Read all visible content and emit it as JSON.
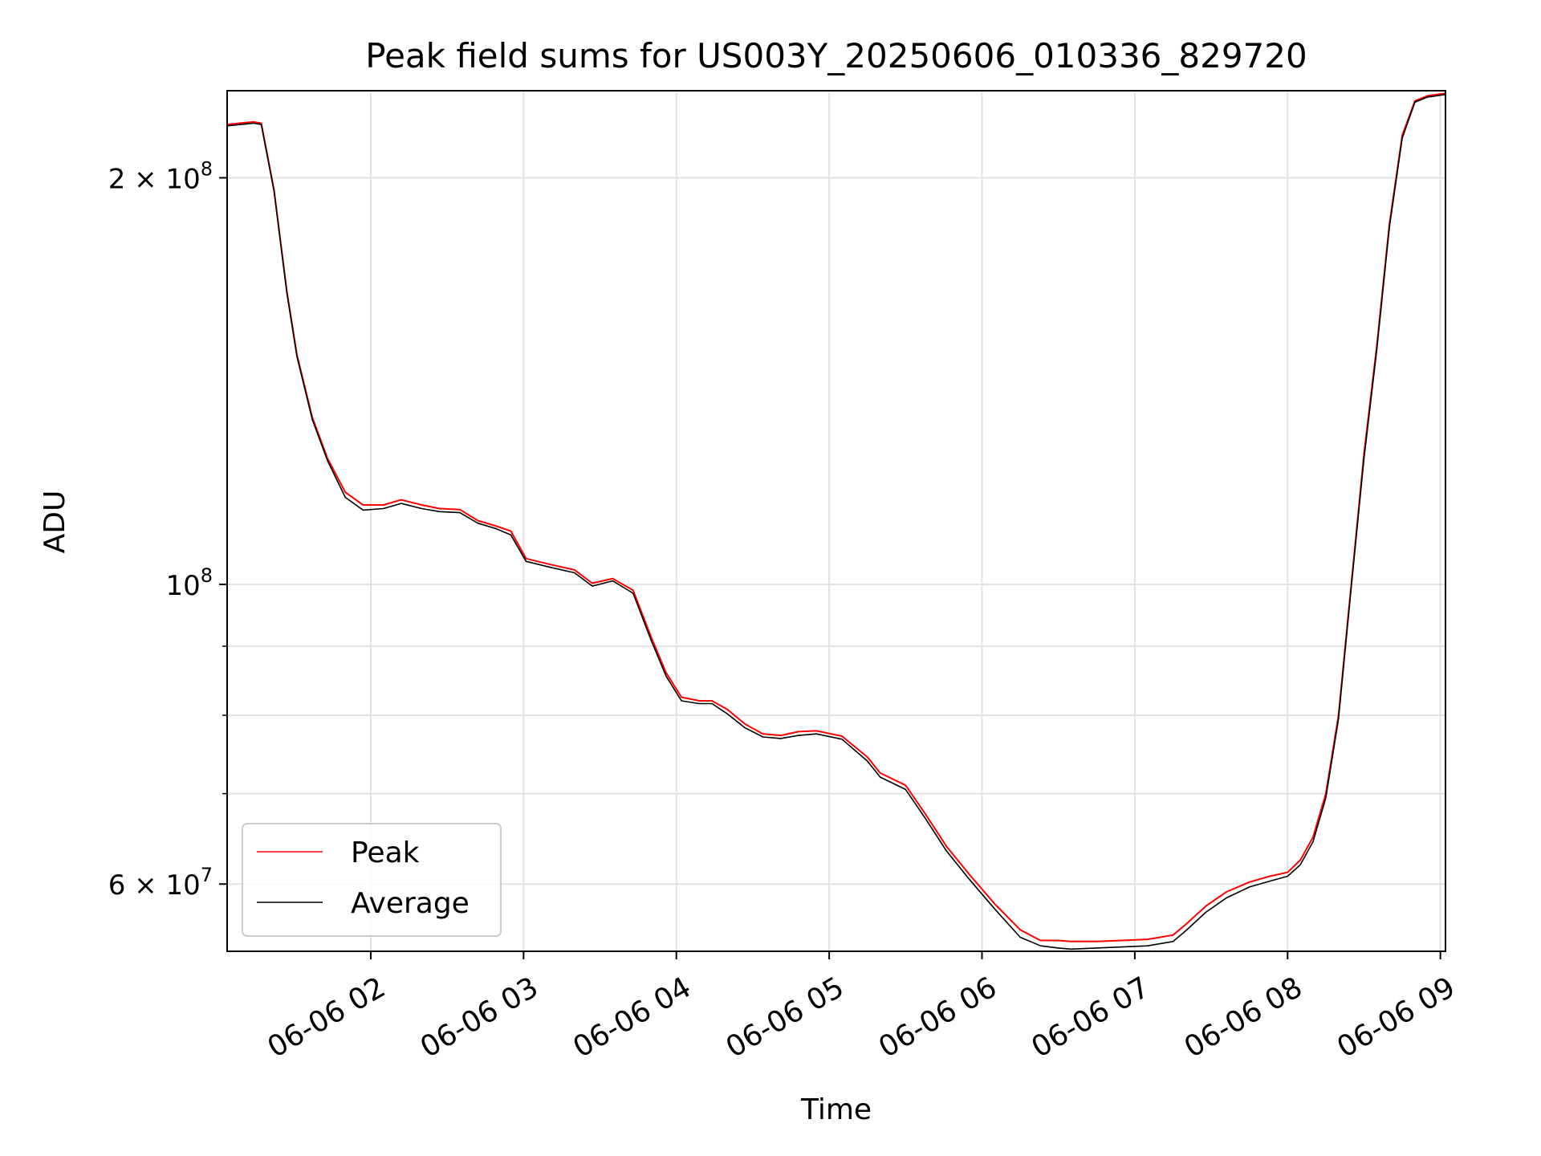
{
  "chart_data": {
    "type": "line",
    "title": "Peak field sums for US003Y_20250606_010336_829720",
    "xlabel": "Time",
    "ylabel": "ADU",
    "y_scale": "log",
    "grid": true,
    "legend_position": "lower-left",
    "xlim": [
      "2025-06-06T01:03:36",
      "2025-06-06T09:02:00"
    ],
    "ylim": [
      53500000,
      232000000
    ],
    "x_ticks": [
      {
        "t": "2025-06-06T02:00",
        "label": "06-06 02"
      },
      {
        "t": "2025-06-06T03:00",
        "label": "06-06 03"
      },
      {
        "t": "2025-06-06T04:00",
        "label": "06-06 04"
      },
      {
        "t": "2025-06-06T05:00",
        "label": "06-06 05"
      },
      {
        "t": "2025-06-06T06:00",
        "label": "06-06 06"
      },
      {
        "t": "2025-06-06T07:00",
        "label": "06-06 07"
      },
      {
        "t": "2025-06-06T08:00",
        "label": "06-06 08"
      },
      {
        "t": "2025-06-06T09:00",
        "label": "06-06 09"
      }
    ],
    "y_ticks": [
      {
        "value": 60000000,
        "mantissa": "6",
        "exp": "7"
      },
      {
        "value": 100000000,
        "mantissa": "",
        "exp": "8"
      },
      {
        "value": 200000000,
        "mantissa": "2",
        "exp": "8"
      }
    ],
    "y_minor_ticks": [
      70000000,
      80000000,
      90000000
    ],
    "series": [
      {
        "name": "Peak",
        "color": "#ff0000",
        "x": [
          "2025-06-06T01:03:36",
          "2025-06-06T01:14",
          "2025-06-06T01:17",
          "2025-06-06T01:22",
          "2025-06-06T01:27",
          "2025-06-06T01:31",
          "2025-06-06T01:37",
          "2025-06-06T01:43",
          "2025-06-06T01:50",
          "2025-06-06T01:57",
          "2025-06-06T02:05",
          "2025-06-06T02:12",
          "2025-06-06T02:20",
          "2025-06-06T02:27",
          "2025-06-06T02:35",
          "2025-06-06T02:42",
          "2025-06-06T02:49",
          "2025-06-06T02:55",
          "2025-06-06T03:01",
          "2025-06-06T03:10",
          "2025-06-06T03:20",
          "2025-06-06T03:27",
          "2025-06-06T03:35",
          "2025-06-06T03:43",
          "2025-06-06T03:50",
          "2025-06-06T03:56",
          "2025-06-06T04:02",
          "2025-06-06T04:09",
          "2025-06-06T04:14",
          "2025-06-06T04:20",
          "2025-06-06T04:27",
          "2025-06-06T04:34",
          "2025-06-06T04:41",
          "2025-06-06T04:48",
          "2025-06-06T04:55",
          "2025-06-06T05:05",
          "2025-06-06T05:15",
          "2025-06-06T05:20",
          "2025-06-06T05:30",
          "2025-06-06T05:38",
          "2025-06-06T05:46",
          "2025-06-06T05:55",
          "2025-06-06T06:05",
          "2025-06-06T06:15",
          "2025-06-06T06:23",
          "2025-06-06T06:30",
          "2025-06-06T06:35",
          "2025-06-06T06:45",
          "2025-06-06T06:55",
          "2025-06-06T07:05",
          "2025-06-06T07:15",
          "2025-06-06T07:20",
          "2025-06-06T07:28",
          "2025-06-06T07:36",
          "2025-06-06T07:45",
          "2025-06-06T07:53",
          "2025-06-06T08:00",
          "2025-06-06T08:05",
          "2025-06-06T08:10",
          "2025-06-06T08:15",
          "2025-06-06T08:20",
          "2025-06-06T08:25",
          "2025-06-06T08:30",
          "2025-06-06T08:35",
          "2025-06-06T08:40",
          "2025-06-06T08:45",
          "2025-06-06T08:50",
          "2025-06-06T08:55",
          "2025-06-06T09:02"
        ],
        "y": [
          219000000,
          220000000,
          219500000,
          196000000,
          165000000,
          148000000,
          133000000,
          124000000,
          117000000,
          114500000,
          114500000,
          115500000,
          114500000,
          113800000,
          113600000,
          111500000,
          110500000,
          109500000,
          104500000,
          103500000,
          102500000,
          100200000,
          101000000,
          99000000,
          91500000,
          86000000,
          82500000,
          82000000,
          82000000,
          80800000,
          78800000,
          77500000,
          77300000,
          77800000,
          77900000,
          77200000,
          74500000,
          72500000,
          71000000,
          67500000,
          64000000,
          61000000,
          58000000,
          55500000,
          54500000,
          54500000,
          54400000,
          54400000,
          54500000,
          54600000,
          55000000,
          56000000,
          57800000,
          59200000,
          60200000,
          60800000,
          61200000,
          62500000,
          65000000,
          70000000,
          80000000,
          100000000,
          125000000,
          150000000,
          185000000,
          215000000,
          228000000,
          230000000,
          231000000
        ]
      },
      {
        "name": "Average",
        "color": "#000000",
        "x": [
          "2025-06-06T01:03:36",
          "2025-06-06T01:14",
          "2025-06-06T01:17",
          "2025-06-06T01:22",
          "2025-06-06T01:27",
          "2025-06-06T01:31",
          "2025-06-06T01:37",
          "2025-06-06T01:43",
          "2025-06-06T01:50",
          "2025-06-06T01:57",
          "2025-06-06T02:05",
          "2025-06-06T02:12",
          "2025-06-06T02:20",
          "2025-06-06T02:27",
          "2025-06-06T02:35",
          "2025-06-06T02:42",
          "2025-06-06T02:49",
          "2025-06-06T02:55",
          "2025-06-06T03:01",
          "2025-06-06T03:10",
          "2025-06-06T03:20",
          "2025-06-06T03:27",
          "2025-06-06T03:35",
          "2025-06-06T03:43",
          "2025-06-06T03:50",
          "2025-06-06T03:56",
          "2025-06-06T04:02",
          "2025-06-06T04:09",
          "2025-06-06T04:14",
          "2025-06-06T04:20",
          "2025-06-06T04:27",
          "2025-06-06T04:34",
          "2025-06-06T04:41",
          "2025-06-06T04:48",
          "2025-06-06T04:55",
          "2025-06-06T05:05",
          "2025-06-06T05:15",
          "2025-06-06T05:20",
          "2025-06-06T05:30",
          "2025-06-06T05:38",
          "2025-06-06T05:46",
          "2025-06-06T05:55",
          "2025-06-06T06:05",
          "2025-06-06T06:15",
          "2025-06-06T06:23",
          "2025-06-06T06:30",
          "2025-06-06T06:35",
          "2025-06-06T06:45",
          "2025-06-06T06:55",
          "2025-06-06T07:05",
          "2025-06-06T07:15",
          "2025-06-06T07:20",
          "2025-06-06T07:28",
          "2025-06-06T07:36",
          "2025-06-06T07:45",
          "2025-06-06T07:53",
          "2025-06-06T08:00",
          "2025-06-06T08:05",
          "2025-06-06T08:10",
          "2025-06-06T08:15",
          "2025-06-06T08:20",
          "2025-06-06T08:25",
          "2025-06-06T08:30",
          "2025-06-06T08:35",
          "2025-06-06T08:40",
          "2025-06-06T08:45",
          "2025-06-06T08:50",
          "2025-06-06T08:55",
          "2025-06-06T09:02"
        ],
        "y": [
          218500000,
          219500000,
          219000000,
          195500000,
          164500000,
          147500000,
          132500000,
          123500000,
          116000000,
          113500000,
          113800000,
          114800000,
          113800000,
          113200000,
          113000000,
          111000000,
          110000000,
          108800000,
          104000000,
          103000000,
          102000000,
          99700000,
          100600000,
          98500000,
          91000000,
          85500000,
          82000000,
          81600000,
          81600000,
          80200000,
          78300000,
          77100000,
          76900000,
          77300000,
          77500000,
          76800000,
          74000000,
          72000000,
          70500000,
          67000000,
          63500000,
          60500000,
          57500000,
          54800000,
          54000000,
          53800000,
          53700000,
          53800000,
          53900000,
          54000000,
          54400000,
          55400000,
          57200000,
          58600000,
          59700000,
          60300000,
          60800000,
          62000000,
          64500000,
          69500000,
          79500000,
          99500000,
          124000000,
          149000000,
          184000000,
          214000000,
          227500000,
          229500000,
          230500000
        ]
      }
    ]
  }
}
